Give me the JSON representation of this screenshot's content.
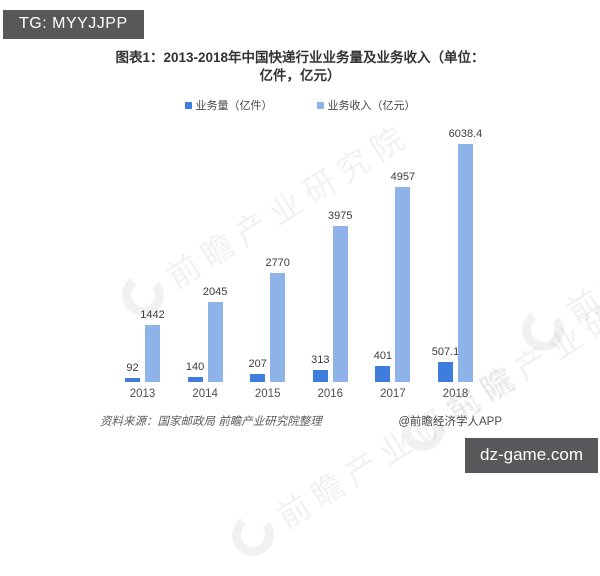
{
  "overlays": {
    "tg_badge": "TG: MYYJJPP",
    "site_badge": "dz-game.com"
  },
  "title": {
    "line1": "图表1：2013-2018年中国快递行业业务量及业务收入（单位：",
    "line2": "亿件，亿元）"
  },
  "watermark": {
    "text": "前瞻产业研究院"
  },
  "chart_data": {
    "type": "bar",
    "title": "图表1：2013-2018年中国快递行业业务量及业务收入（单位：亿件，亿元）",
    "categories": [
      "2013",
      "2014",
      "2015",
      "2016",
      "2017",
      "2018"
    ],
    "series": [
      {
        "name": "业务量（亿件）",
        "color": "#3e7ddb",
        "values": [
          92,
          140,
          207,
          313,
          401,
          507.1
        ]
      },
      {
        "name": "业务收入（亿元）",
        "color": "#8db3e8",
        "values": [
          1442,
          2045,
          2770,
          3975,
          4957,
          6038.4
        ]
      }
    ],
    "xlabel": "",
    "ylabel": "",
    "ylim": [
      0,
      6350
    ],
    "grid": false,
    "axis_lines": false,
    "legend_position": "top",
    "value_labels": true
  },
  "footer": {
    "source": "资料来源：国家邮政局 前瞻产业研究院整理",
    "credit": "@前瞻经济学人APP"
  }
}
